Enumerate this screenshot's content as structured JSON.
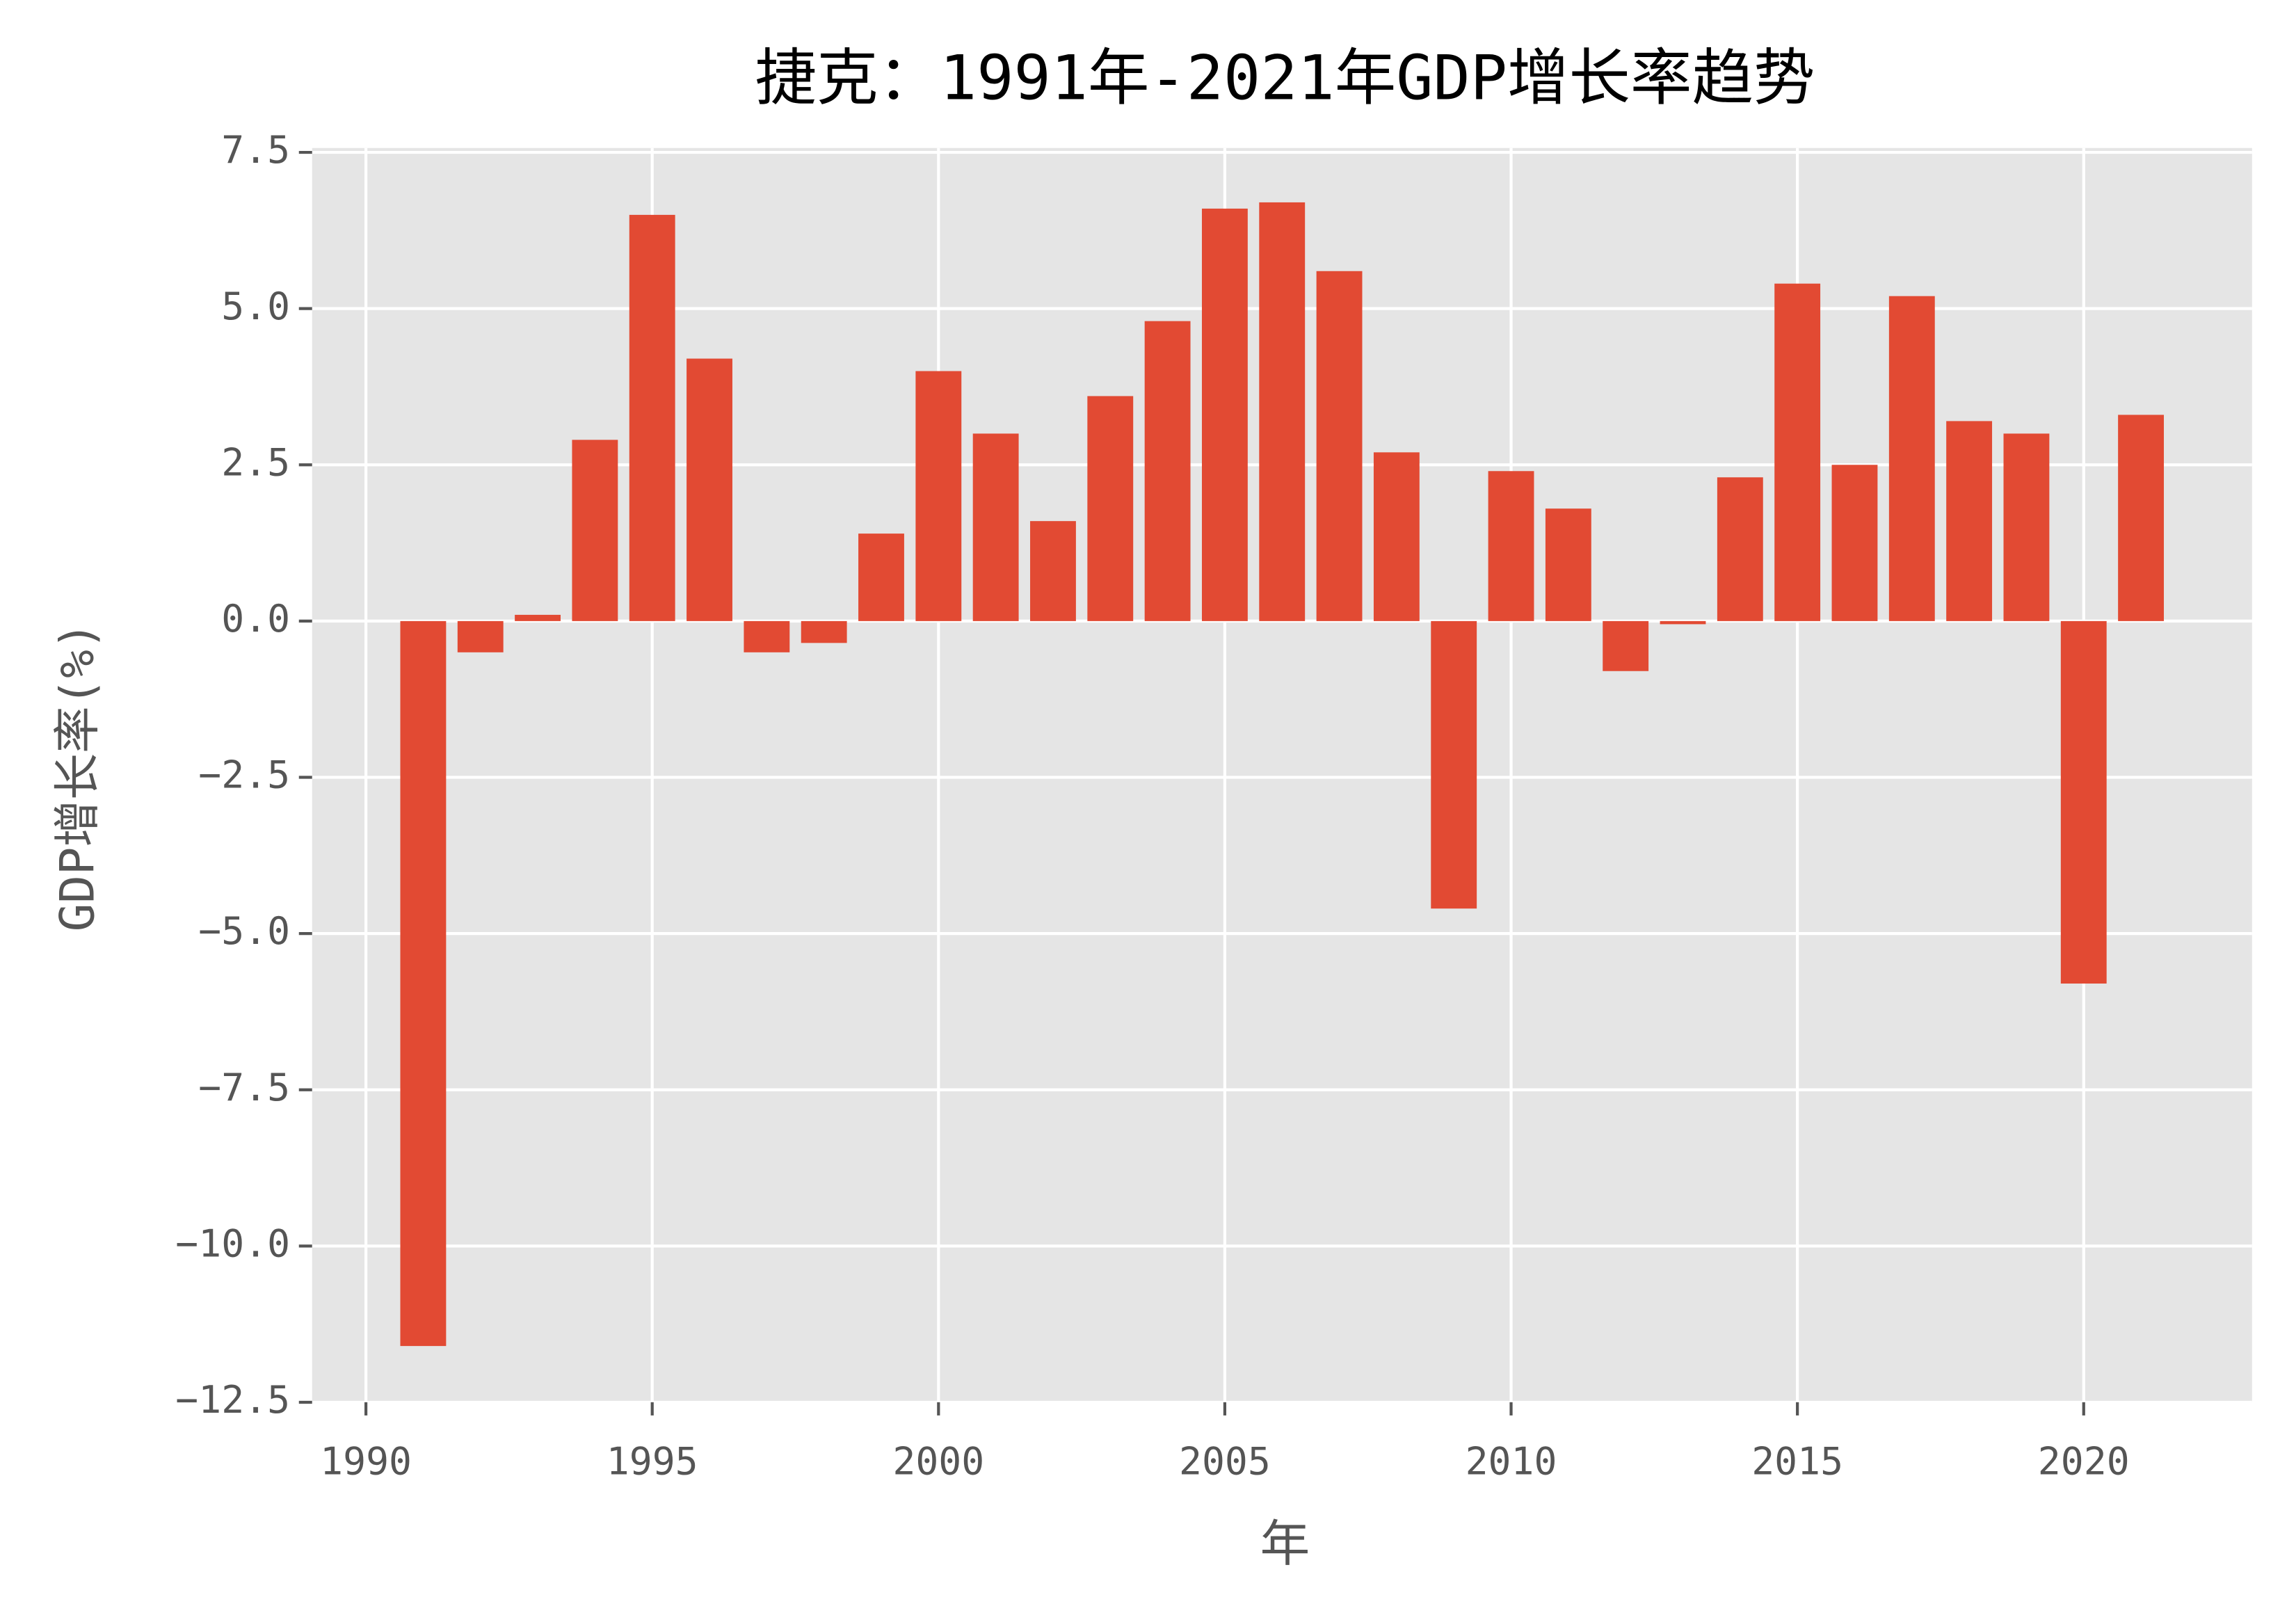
{
  "chart_data": {
    "type": "bar",
    "title": "捷克：1991年-2021年GDP增长率趋势",
    "x_label": "年",
    "y_label": "GDP增长率(%)",
    "x": [
      1991,
      1992,
      1993,
      1994,
      1995,
      1996,
      1997,
      1998,
      1999,
      2000,
      2001,
      2002,
      2003,
      2004,
      2005,
      2006,
      2007,
      2008,
      2009,
      2010,
      2011,
      2012,
      2013,
      2014,
      2015,
      2016,
      2017,
      2018,
      2019,
      2020,
      2021
    ],
    "values": [
      -11.6,
      -0.5,
      0.1,
      2.9,
      6.5,
      4.2,
      -0.5,
      -0.35,
      1.4,
      4.0,
      3.0,
      1.6,
      3.6,
      4.8,
      6.6,
      6.7,
      5.6,
      2.7,
      -4.6,
      2.4,
      1.8,
      -0.8,
      -0.05,
      2.3,
      5.4,
      2.5,
      5.2,
      3.2,
      3.0,
      -5.8,
      3.3
    ],
    "color": "#e24a33",
    "xlim": [
      1989.06,
      2022.94
    ],
    "xticks": [
      1990,
      1995,
      2000,
      2005,
      2010,
      2015,
      2020
    ],
    "ylim": [
      -12.5,
      7.57
    ],
    "yticks": [
      7.5,
      {
        "value": 5,
        "label": "5.0"
      },
      2.5,
      {
        "value": 0,
        "label": "0.0"
      },
      {
        "value": -2.5,
        "label": "−2.5"
      },
      {
        "value": -5,
        "label": "−5.0"
      },
      {
        "value": -7.5,
        "label": "−7.5"
      },
      {
        "value": -10,
        "label": "−10.0"
      },
      {
        "value": -12.5,
        "label": "−12.5"
      }
    ],
    "grid": true
  }
}
